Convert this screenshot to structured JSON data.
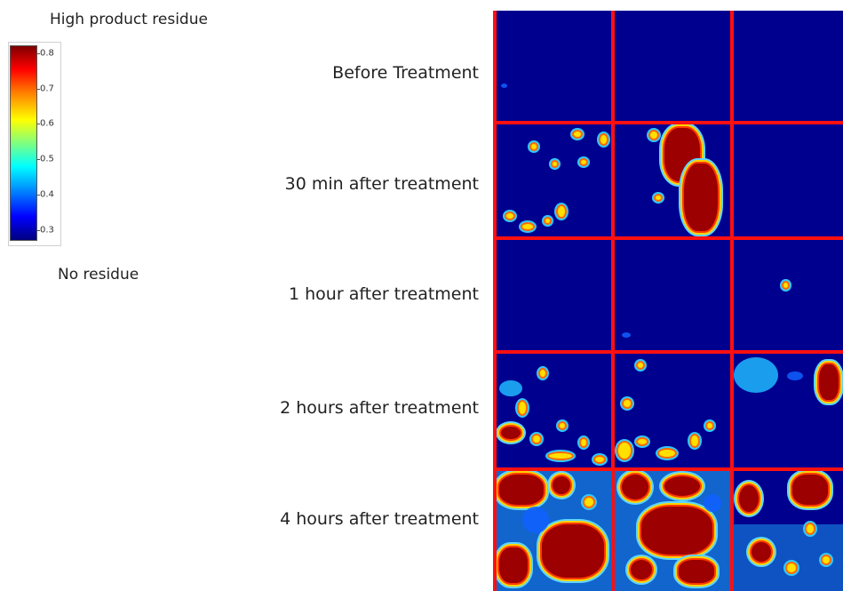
{
  "legend": {
    "top_label": "High product residue",
    "bottom_label": "No residue",
    "ticks": [
      "0.8",
      "0.7",
      "0.6",
      "0.5",
      "0.4",
      "0.3"
    ],
    "colormap": [
      "#00007f",
      "#0000ff",
      "#00ffff",
      "#ffff00",
      "#ff0000",
      "#7f0000"
    ]
  },
  "rows": [
    {
      "label": "Before Treatment"
    },
    {
      "label": "30 min after treatment"
    },
    {
      "label": "1 hour after treatment"
    },
    {
      "label": "2 hours after treatment"
    },
    {
      "label": "4 hours after treatment"
    }
  ],
  "colors": {
    "grid_line": "#ff1010",
    "background": "#00008f",
    "high": "#9c0000"
  }
}
